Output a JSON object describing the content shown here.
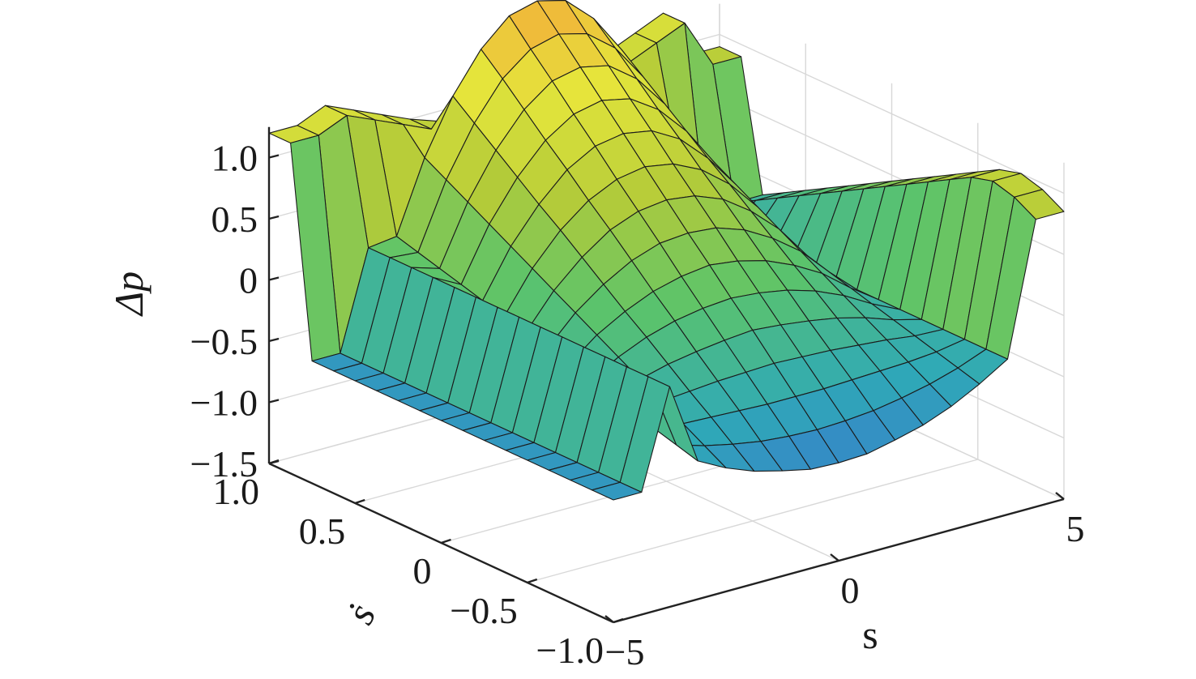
{
  "chart_data": {
    "type": "surface",
    "title": "",
    "xlabel": "s",
    "ylabel": "ṡ",
    "zlabel": "Δp",
    "xlim": [
      -5,
      5
    ],
    "ylim": [
      -1,
      1
    ],
    "zlim": [
      -1.5,
      1.2
    ],
    "x_ticks": [
      "−5",
      "0",
      "5"
    ],
    "y_ticks": [
      "−1.0",
      "−0.5",
      "0",
      "0.5",
      "1.0"
    ],
    "z_ticks": [
      "−1.5",
      "−1.0",
      "−0.5",
      "0",
      "0.5",
      "1.0"
    ],
    "x_tick_values": [
      -5,
      0,
      5
    ],
    "y_tick_values": [
      -1,
      -0.5,
      0,
      0.5,
      1
    ],
    "z_tick_values": [
      -1.5,
      -1,
      -0.5,
      0,
      0.5,
      1
    ],
    "grid": true,
    "colormap": [
      "#3e2a9e",
      "#3b6fd4",
      "#2fa9b7",
      "#5cc46a",
      "#b4cb39",
      "#e5e63b",
      "#f3a93a"
    ],
    "x": [
      -5,
      -4.375,
      -3.75,
      -3.125,
      -2.5,
      -1.875,
      -1.25,
      -0.625,
      0,
      0.625,
      1.25,
      1.875,
      2.5,
      3.125,
      3.75,
      4.375,
      5
    ],
    "y": [
      -1,
      -0.875,
      -0.75,
      -0.625,
      -0.5,
      -0.375,
      -0.25,
      -0.125,
      0,
      0.125,
      0.25,
      0.375,
      0.5,
      0.625,
      0.75,
      0.875,
      1
    ],
    "z": [
      [
        -0.5,
        -0.5,
        0.3,
        -0.37,
        -0.49,
        -0.58,
        -0.64,
        -0.69,
        -0.7,
        -0.69,
        -0.64,
        -0.58,
        -0.49,
        -0.37,
        -0.23,
        0.85,
        0.85
      ],
      [
        -0.5,
        -0.5,
        0.3,
        -0.32,
        -0.39,
        -0.44,
        -0.48,
        -0.5,
        -0.51,
        -0.5,
        -0.48,
        -0.44,
        -0.39,
        -0.32,
        -0.23,
        0.95,
        0.95
      ],
      [
        -0.5,
        -0.5,
        0.3,
        -0.27,
        -0.29,
        -0.3,
        -0.31,
        -0.32,
        -0.32,
        -0.32,
        -0.31,
        -0.3,
        -0.29,
        -0.27,
        -0.23,
        1.0,
        1.0
      ],
      [
        -0.5,
        -0.5,
        0.3,
        -0.22,
        -0.19,
        -0.17,
        -0.15,
        -0.14,
        -0.13,
        -0.14,
        -0.15,
        -0.17,
        -0.19,
        -0.22,
        -0.23,
        0.95,
        0.95
      ],
      [
        -0.5,
        -0.5,
        0.3,
        -0.17,
        -0.09,
        -0.03,
        0.01,
        0.04,
        0.06,
        0.04,
        0.01,
        -0.03,
        -0.09,
        -0.17,
        -0.23,
        0.85,
        0.85
      ],
      [
        -0.5,
        -0.5,
        0.3,
        -0.12,
        0.01,
        0.11,
        0.18,
        0.22,
        0.24,
        0.22,
        0.18,
        0.11,
        0.01,
        -0.12,
        -0.23,
        0.75,
        0.75
      ],
      [
        -0.5,
        -0.5,
        0.3,
        -0.07,
        0.11,
        0.24,
        0.34,
        0.4,
        0.43,
        0.4,
        0.34,
        0.24,
        0.11,
        -0.07,
        -0.23,
        0.65,
        0.65
      ],
      [
        -0.5,
        -0.5,
        0.3,
        -0.02,
        0.21,
        0.38,
        0.51,
        0.59,
        0.61,
        0.59,
        0.51,
        0.38,
        0.21,
        -0.02,
        -0.23,
        0.55,
        0.55
      ],
      [
        -0.5,
        -0.5,
        0.3,
        0.03,
        0.31,
        0.52,
        0.68,
        0.77,
        0.8,
        0.77,
        0.68,
        0.52,
        0.31,
        0.03,
        -0.23,
        0.45,
        0.45
      ],
      [
        -0.5,
        -0.5,
        0.3,
        0.08,
        0.41,
        0.66,
        0.84,
        0.95,
        0.99,
        0.95,
        0.84,
        0.66,
        0.41,
        0.08,
        -0.23,
        0.35,
        0.35
      ],
      [
        -0.5,
        -0.5,
        0.3,
        0.13,
        0.51,
        0.79,
        1.01,
        1.14,
        1.18,
        1.14,
        1.01,
        0.79,
        0.51,
        0.13,
        -0.23,
        0.25,
        0.25
      ],
      [
        -0.5,
        -0.5,
        0.3,
        0.18,
        0.61,
        0.93,
        1.17,
        1.32,
        1.37,
        1.32,
        1.17,
        0.93,
        0.61,
        0.18,
        -0.23,
        0.15,
        0.15
      ],
      [
        -0.5,
        -0.5,
        0.3,
        0.23,
        0.71,
        1.07,
        1.34,
        1.51,
        1.56,
        1.51,
        1.34,
        1.07,
        0.71,
        0.23,
        -0.23,
        0.05,
        0.05
      ],
      [
        -0.5,
        -0.5,
        0.3,
        0.28,
        0.81,
        1.21,
        1.51,
        1.69,
        1.75,
        1.69,
        1.51,
        1.21,
        0.81,
        0.28,
        -0.23,
        -0.05,
        -0.05
      ],
      [
        -0.5,
        -0.5,
        0.3,
        0.33,
        0.91,
        1.35,
        1.67,
        1.88,
        1.94,
        1.88,
        1.67,
        1.35,
        0.91,
        0.33,
        -0.23,
        -0.15,
        -0.15
      ],
      [
        1.2,
        1.2,
        1.3,
        1.2,
        1.1,
        1.0,
        0.92,
        0.85,
        0.8,
        0.85,
        0.92,
        1.0,
        1.1,
        1.2,
        1.3,
        0.9,
        0.9
      ],
      [
        1.2,
        1.2,
        1.3,
        1.2,
        1.1,
        1.0,
        0.92,
        0.85,
        0.8,
        0.85,
        0.92,
        1.0,
        1.1,
        1.2,
        1.3,
        0.9,
        0.9
      ]
    ]
  }
}
